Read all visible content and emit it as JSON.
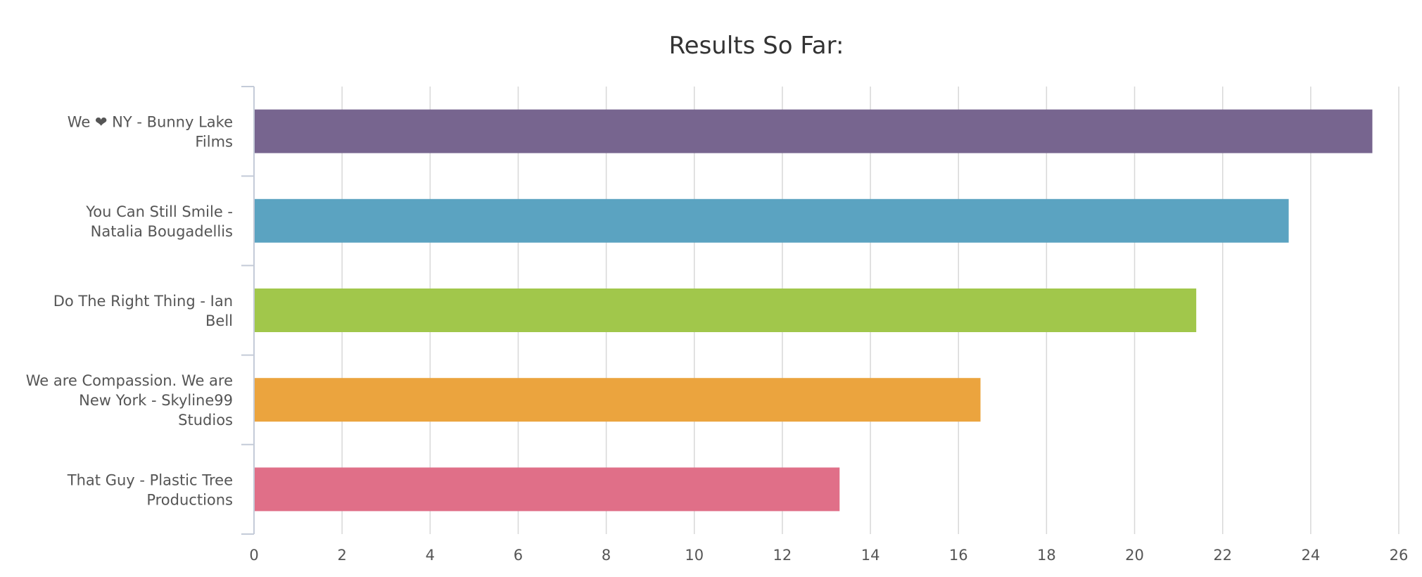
{
  "chart_data": {
    "type": "bar",
    "orientation": "horizontal",
    "title": "Results So Far:",
    "xlabel": "",
    "ylabel": "",
    "categories": [
      "We ❤ NY - Bunny Lake Films",
      "You Can Still Smile - Natalia Bougadellis",
      "Do The Right Thing - Ian Bell",
      "We are Compassion. We are New York - Skyline99 Studios",
      "That Guy - Plastic Tree Productions"
    ],
    "category_label_lines": [
      [
        "We ❤ NY - Bunny Lake",
        "Films"
      ],
      [
        "You Can Still Smile -",
        "Natalia Bougadellis"
      ],
      [
        "Do The Right Thing - Ian",
        "Bell"
      ],
      [
        "We are Compassion. We are",
        "New York - Skyline99",
        "Studios"
      ],
      [
        "That Guy - Plastic Tree",
        "Productions"
      ]
    ],
    "values": [
      25.4,
      23.5,
      21.4,
      16.5,
      13.3
    ],
    "colors": [
      "#77658f",
      "#5ba3c1",
      "#a1c74b",
      "#eba43e",
      "#e06f88"
    ],
    "xlim": [
      0,
      26
    ],
    "xticks": [
      "0",
      "2",
      "4",
      "6",
      "8",
      "10",
      "12",
      "14",
      "16",
      "18",
      "20",
      "22",
      "24",
      "26"
    ],
    "grid": true,
    "legend": "none"
  }
}
